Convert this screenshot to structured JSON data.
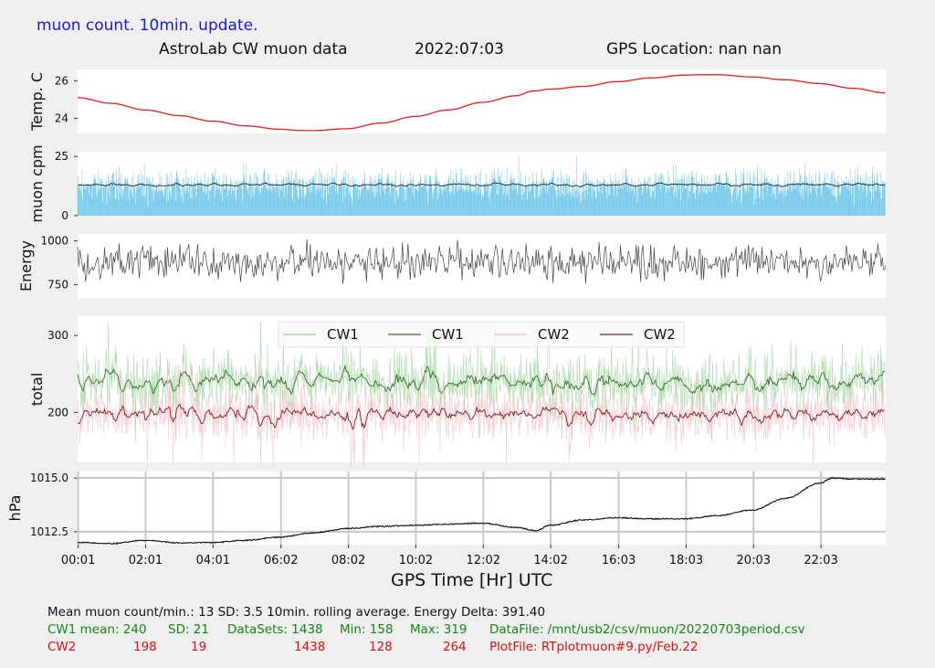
{
  "header": {
    "subtitle": "muon count.  10min. update.",
    "title": "AstroLab CW muon data",
    "date": "2022:07:03",
    "gps": "GPS Location: nan   nan"
  },
  "colors": {
    "temp": "#ee1c1c",
    "muon_bars": "#5bbfe8",
    "muon_avg": "#222222",
    "energy": "#444444",
    "cw1_raw": "#8fd08f",
    "cw1_avg": "#3d6b2d",
    "cw2_raw": "#f6b8c0",
    "cw2_avg": "#8b1a1a",
    "pressure": "#111111",
    "panel_bg": "#ffffff",
    "page_bg": "#efefef",
    "grid": "#c8c8c8"
  },
  "footer": {
    "line1": "Mean muon count/min.: 13  SD: 3.5   10min. rolling average.    Energy Delta:  391.40",
    "cw1": {
      "label": "CW1 mean: 240",
      "sd": "SD: 21",
      "datasets": "DataSets: 1438",
      "min": "Min: 158",
      "max": "Max: 319",
      "file": "DataFile: /mnt/usb2/csv/muon/20220703period.csv"
    },
    "cw2": {
      "label": "CW2",
      "mean": "198",
      "sd": "19",
      "datasets": "1438",
      "min": "128",
      "max": "264",
      "file": "PlotFile: RTplotmuon#9.py/Feb.22"
    }
  },
  "chart_data": [
    {
      "type": "line",
      "ylabel": "Temp. C",
      "yticks": [
        24,
        26
      ],
      "ylim": [
        23.2,
        26.6
      ],
      "x_hours": [
        0,
        1,
        2,
        3,
        4,
        5,
        6,
        6.7,
        7,
        8,
        9,
        10,
        11,
        12,
        13,
        13.5,
        14,
        15,
        16,
        17,
        18,
        18.5,
        19,
        20,
        21,
        22,
        23,
        23.97
      ],
      "values": [
        25.1,
        24.8,
        24.45,
        24.15,
        23.85,
        23.6,
        23.42,
        23.35,
        23.35,
        23.45,
        23.75,
        24.1,
        24.45,
        24.85,
        25.2,
        25.45,
        25.55,
        25.7,
        25.95,
        26.15,
        26.3,
        26.32,
        26.32,
        26.2,
        26.05,
        25.85,
        25.6,
        25.35
      ]
    },
    {
      "type": "bar",
      "ylabel": "muon cpm",
      "yticks": [
        0,
        25
      ],
      "ylim": [
        0,
        27
      ],
      "mean": 13,
      "sd": 3.5,
      "rolling_average_level": 13
    },
    {
      "type": "line",
      "ylabel": "Energy",
      "yticks": [
        750,
        1000
      ],
      "ylim": [
        675,
        1040
      ],
      "approx_mean": 880,
      "approx_range": [
        680,
        1035
      ]
    },
    {
      "type": "line",
      "ylabel": "total",
      "yticks": [
        200,
        300
      ],
      "ylim": [
        135,
        325
      ],
      "legend": [
        "CW1",
        "CW1",
        "CW2",
        "CW2"
      ],
      "legend_position": "top-center",
      "series": [
        {
          "name": "CW1",
          "mean": 240,
          "sd": 21,
          "min": 158,
          "max": 319,
          "datasets": 1438
        },
        {
          "name": "CW2",
          "mean": 198,
          "sd": 19,
          "min": 128,
          "max": 264,
          "datasets": 1438
        }
      ]
    },
    {
      "type": "line",
      "ylabel": "hPa",
      "yticks": [
        1012.5,
        1015.0
      ],
      "ytick_labels": [
        "1012.5",
        "1015.0"
      ],
      "ylim": [
        1011.9,
        1015.3
      ],
      "grid": true,
      "x_hours": [
        0,
        1,
        2,
        3,
        4,
        5,
        6,
        7,
        8,
        9,
        10,
        11,
        12,
        13,
        13.6,
        14,
        15,
        16,
        17,
        18,
        19,
        20,
        21,
        22,
        22.4,
        23,
        23.97
      ],
      "values": [
        1012.0,
        1011.95,
        1012.1,
        1011.98,
        1012.0,
        1012.1,
        1012.25,
        1012.45,
        1012.65,
        1012.75,
        1012.8,
        1012.85,
        1012.9,
        1012.7,
        1012.55,
        1012.8,
        1013.05,
        1013.15,
        1013.1,
        1013.1,
        1013.25,
        1013.5,
        1014.05,
        1014.75,
        1015.0,
        1014.95,
        1014.95
      ]
    }
  ],
  "x_axis": {
    "title": "GPS Time  [Hr] UTC",
    "range_hours": [
      0,
      23.97
    ],
    "tick_labels": [
      "00:01",
      "02:01",
      "04:01",
      "06:02",
      "08:02",
      "10:02",
      "12:02",
      "14:02",
      "16:03",
      "18:03",
      "20:03",
      "22:03"
    ],
    "tick_hours": [
      0.0167,
      2.0167,
      4.0167,
      6.033,
      8.033,
      10.033,
      12.033,
      14.033,
      16.05,
      18.05,
      20.05,
      22.05
    ]
  }
}
